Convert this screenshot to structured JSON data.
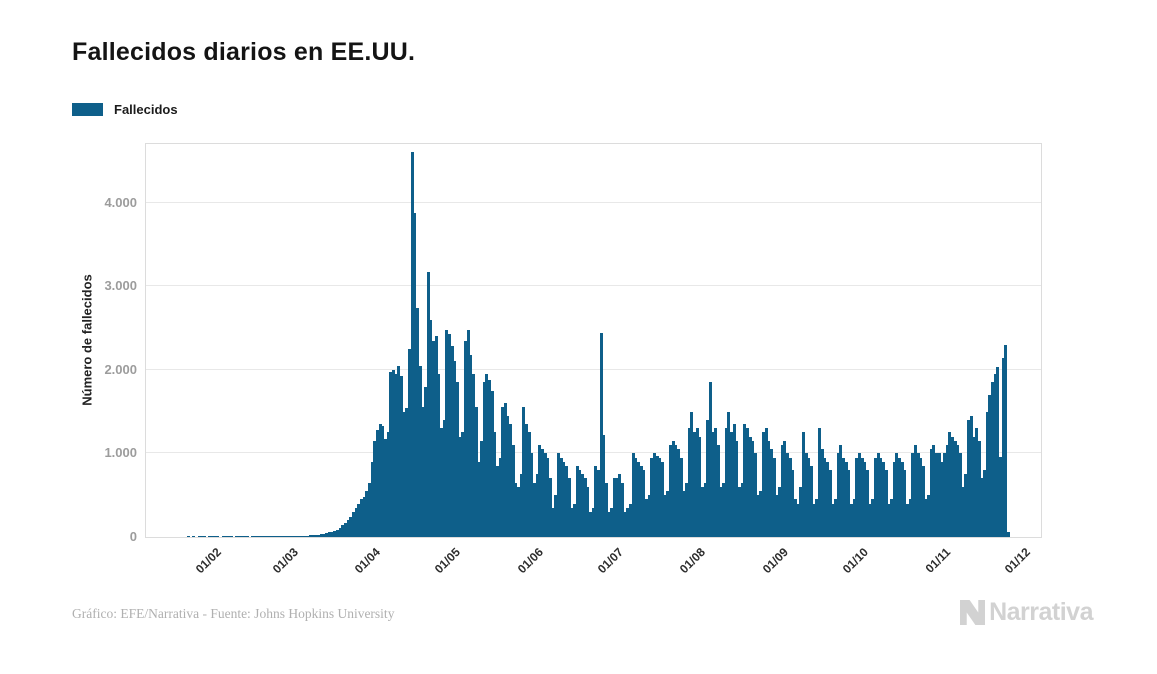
{
  "header": {
    "title": "Fallecidos diarios en EE.UU."
  },
  "legend": {
    "items": [
      {
        "label": "Fallecidos",
        "color": "#0e5f8a"
      }
    ]
  },
  "footer": {
    "caption": "Gráfico: EFE/Narrativa - Fuente: Johns Hopkins University",
    "logo_text": "Narrativa"
  },
  "chart_data": {
    "type": "bar",
    "title": "Fallecidos diarios en EE.UU.",
    "series_name": "Fallecidos",
    "xlabel": "",
    "ylabel": "Número de fallecidos",
    "bar_color": "#0e5f8a",
    "grid": "horizontal",
    "legend_position": "top-left",
    "frequency": "daily",
    "start_date": "2020-01-22",
    "ylim": [
      0,
      4700
    ],
    "axis_days": 314,
    "y_ticks": [
      {
        "value": 0,
        "label": "0"
      },
      {
        "value": 1000,
        "label": "1.000"
      },
      {
        "value": 2000,
        "label": "2.000"
      },
      {
        "value": 3000,
        "label": "3.000"
      },
      {
        "value": 4000,
        "label": "4.000"
      }
    ],
    "x_ticks": [
      {
        "label": "01/02",
        "day": 10
      },
      {
        "label": "01/03",
        "day": 39
      },
      {
        "label": "01/04",
        "day": 70
      },
      {
        "label": "01/05",
        "day": 100
      },
      {
        "label": "01/06",
        "day": 131
      },
      {
        "label": "01/07",
        "day": 161
      },
      {
        "label": "01/08",
        "day": 192
      },
      {
        "label": "01/09",
        "day": 223
      },
      {
        "label": "01/10",
        "day": 253
      },
      {
        "label": "01/11",
        "day": 284
      },
      {
        "label": "01/12",
        "day": 314
      }
    ],
    "values": [
      1,
      0,
      1,
      0,
      1,
      1,
      1,
      0,
      1,
      1,
      1,
      1,
      0,
      1,
      1,
      1,
      1,
      0,
      1,
      1,
      1,
      1,
      1,
      0,
      1,
      1,
      1,
      1,
      1,
      1,
      1,
      1,
      1,
      1,
      1,
      1,
      1,
      1,
      6,
      6,
      4,
      7,
      9,
      11,
      14,
      18,
      22,
      26,
      30,
      28,
      34,
      40,
      48,
      58,
      55,
      68,
      88,
      110,
      140,
      170,
      200,
      240,
      300,
      350,
      400,
      450,
      480,
      550,
      650,
      900,
      1150,
      1280,
      1350,
      1330,
      1170,
      1250,
      1970,
      2000,
      1950,
      2050,
      1920,
      1500,
      1540,
      2250,
      4600,
      3880,
      2740,
      2050,
      1550,
      1800,
      3170,
      2600,
      2350,
      2400,
      1950,
      1300,
      1400,
      2470,
      2430,
      2280,
      2100,
      1850,
      1200,
      1250,
      2350,
      2480,
      2180,
      1950,
      1550,
      900,
      1150,
      1850,
      1950,
      1880,
      1750,
      1250,
      850,
      950,
      1550,
      1600,
      1450,
      1350,
      1100,
      650,
      600,
      750,
      1550,
      1350,
      1250,
      1000,
      650,
      750,
      1100,
      1050,
      1000,
      950,
      700,
      350,
      500,
      1000,
      950,
      900,
      850,
      700,
      350,
      400,
      850,
      800,
      750,
      700,
      600,
      300,
      350,
      850,
      800,
      2440,
      1220,
      650,
      300,
      350,
      700,
      700,
      750,
      650,
      300,
      350,
      400,
      1000,
      950,
      900,
      850,
      800,
      450,
      500,
      950,
      1000,
      970,
      950,
      900,
      500,
      550,
      1100,
      1150,
      1100,
      1050,
      950,
      550,
      650,
      1300,
      1500,
      1250,
      1300,
      1200,
      600,
      650,
      1400,
      1850,
      1250,
      1300,
      1100,
      600,
      650,
      1300,
      1500,
      1250,
      1350,
      1150,
      600,
      650,
      1350,
      1300,
      1200,
      1150,
      1000,
      500,
      550,
      1250,
      1300,
      1150,
      1050,
      950,
      500,
      600,
      1100,
      1150,
      1000,
      950,
      800,
      450,
      400,
      600,
      1250,
      1000,
      950,
      850,
      400,
      450,
      1300,
      1050,
      950,
      900,
      800,
      400,
      450,
      1000,
      1100,
      950,
      900,
      800,
      400,
      450,
      950,
      1000,
      950,
      900,
      800,
      400,
      450,
      950,
      1000,
      950,
      900,
      800,
      400,
      450,
      900,
      1000,
      950,
      900,
      800,
      400,
      450,
      1000,
      1100,
      1000,
      950,
      850,
      450,
      500,
      1050,
      1100,
      1000,
      1000,
      900,
      1000,
      1100,
      1250,
      1200,
      1150,
      1100,
      1000,
      600,
      750,
      1400,
      1450,
      1200,
      1300,
      1150,
      700,
      800,
      1500,
      1700,
      1850,
      1950,
      2030,
      960,
      2140,
      2300,
      60
    ]
  }
}
